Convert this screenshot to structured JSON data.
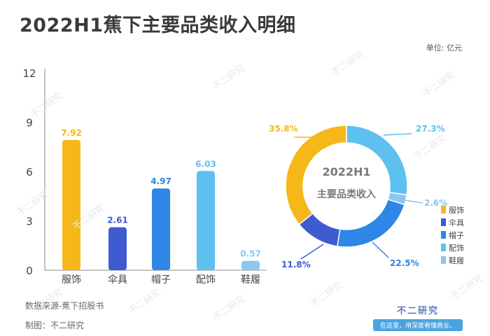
{
  "title": "2022H1蕉下主要品类收入明细",
  "unit": "单位: 亿元",
  "source": "数据来源-蕉下招股书",
  "maker": "制图：不二研究",
  "brand": {
    "name": "不二研究",
    "slogan": "在这里，用深度看懂商业。"
  },
  "watermark": "不二研究",
  "colors": {
    "服饰": "#f6b818",
    "伞具": "#3f5bd1",
    "帽子": "#2e86e6",
    "配饰": "#5ec0ee",
    "鞋履": "#8cc6f2"
  },
  "chart_data": [
    {
      "type": "bar",
      "categories": [
        "服饰",
        "伞具",
        "帽子",
        "配饰",
        "鞋履"
      ],
      "values": [
        7.92,
        2.61,
        4.97,
        6.03,
        0.57
      ],
      "value_labels": [
        "7.92",
        "2.61",
        "4.97",
        "6.03",
        "0.57"
      ],
      "yticks": [
        "0",
        "3",
        "6",
        "9",
        "12"
      ],
      "ylim": [
        0,
        12
      ]
    },
    {
      "type": "pie",
      "variant": "donut",
      "center_label_1": "2022H1",
      "center_label_2": "主要品类收入",
      "categories": [
        "服饰",
        "伞具",
        "帽子",
        "配饰",
        "鞋履"
      ],
      "values": [
        35.8,
        11.8,
        22.5,
        27.3,
        2.6
      ],
      "value_labels": [
        "35.8%",
        "11.8%",
        "22.5%",
        "27.3%",
        "2.6%"
      ],
      "legend_position": "right",
      "legend": [
        "服饰",
        "伞具",
        "帽子",
        "配饰",
        "鞋履"
      ]
    }
  ]
}
